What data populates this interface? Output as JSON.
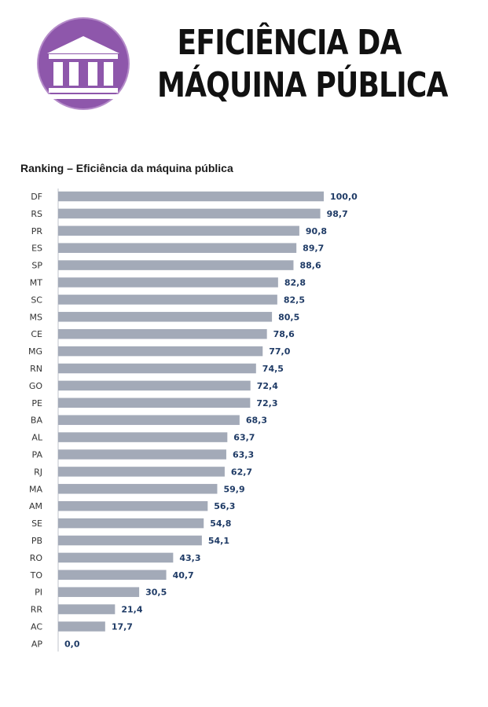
{
  "header": {
    "title_line1": "EFICIÊNCIA DA",
    "title_line2": "MÁQUINA PÚBLICA",
    "icon": "government-building-icon",
    "accent_color": "#8e57ab"
  },
  "chart_data": {
    "type": "bar",
    "orientation": "horizontal",
    "title": "Ranking – Eficiência da máquina pública",
    "xlabel": "",
    "ylabel": "",
    "xlim": [
      0,
      100
    ],
    "grid": false,
    "bar_color": "#a3aab8",
    "label_color": "#1f3b66",
    "categories": [
      "DF",
      "RS",
      "PR",
      "ES",
      "SP",
      "MT",
      "SC",
      "MS",
      "CE",
      "MG",
      "RN",
      "GO",
      "PE",
      "BA",
      "AL",
      "PA",
      "RJ",
      "MA",
      "AM",
      "SE",
      "PB",
      "RO",
      "TO",
      "PI",
      "RR",
      "AC",
      "AP"
    ],
    "values": [
      100.0,
      98.7,
      90.8,
      89.7,
      88.6,
      82.8,
      82.5,
      80.5,
      78.6,
      77.0,
      74.5,
      72.4,
      72.3,
      68.3,
      63.7,
      63.3,
      62.7,
      59.9,
      56.3,
      54.8,
      54.1,
      43.3,
      40.7,
      30.5,
      21.4,
      17.7,
      0.0
    ],
    "value_labels": [
      "100,0",
      "98,7",
      "90,8",
      "89,7",
      "88,6",
      "82,8",
      "82,5",
      "80,5",
      "78,6",
      "77,0",
      "74,5",
      "72,4",
      "72,3",
      "68,3",
      "63,7",
      "63,3",
      "62,7",
      "59,9",
      "56,3",
      "54,8",
      "54,1",
      "43,3",
      "40,7",
      "30,5",
      "21,4",
      "17,7",
      "0,0"
    ]
  }
}
